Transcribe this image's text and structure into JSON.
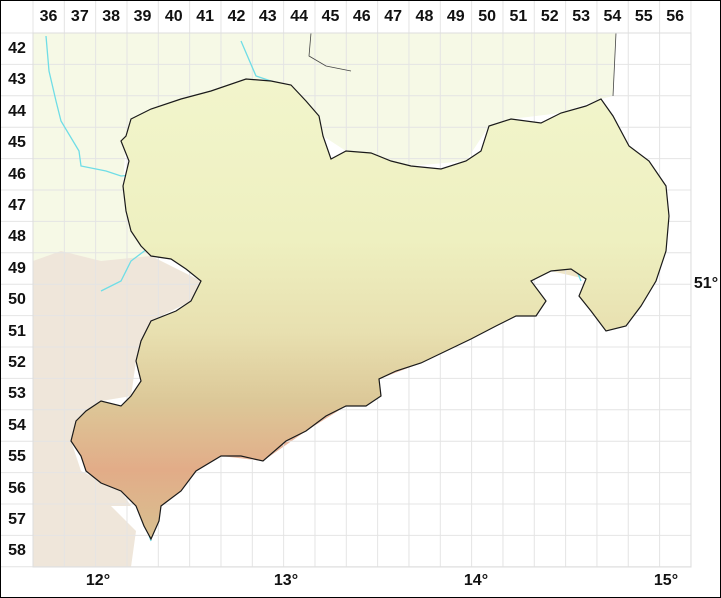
{
  "map": {
    "column_labels": [
      "36",
      "37",
      "38",
      "39",
      "40",
      "41",
      "42",
      "43",
      "44",
      "45",
      "46",
      "47",
      "48",
      "49",
      "50",
      "51",
      "52",
      "53",
      "54",
      "55",
      "56"
    ],
    "row_labels": [
      "42",
      "43",
      "44",
      "45",
      "46",
      "47",
      "48",
      "49",
      "50",
      "51",
      "52",
      "53",
      "54",
      "55",
      "56",
      "57",
      "58"
    ],
    "longitude_labels": [
      "12°",
      "13°",
      "14°",
      "15°"
    ],
    "latitude_labels": [
      "51°"
    ],
    "colors": {
      "grid": "#e6e6e6",
      "border": "#1a1a1a",
      "river": "#66dde8",
      "lowland": "#f0f3c6",
      "upland": "#e4d9a8",
      "highland": "#e6a888",
      "outside_north": "#f5f8e4"
    }
  }
}
